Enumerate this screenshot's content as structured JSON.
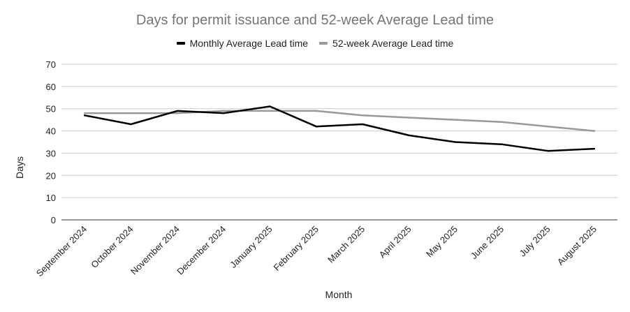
{
  "chart_data": {
    "type": "line",
    "title": "Days for permit issuance and 52-week Average Lead time",
    "xlabel": "Month",
    "ylabel": "Days",
    "ylim": [
      0,
      70
    ],
    "yticks": [
      0,
      10,
      20,
      30,
      40,
      50,
      60,
      70
    ],
    "grid": true,
    "legend_position": "top",
    "categories": [
      "September 2024",
      "October 2024",
      "November 2024",
      "December 2024",
      "January 2025",
      "February 2025",
      "March 2025",
      "April 2025",
      "May 2025",
      "June 2025",
      "July 2025",
      "August 2025"
    ],
    "series": [
      {
        "name": "Monthly Average Lead time",
        "color": "#000000",
        "values": [
          47,
          43,
          49,
          48,
          51,
          42,
          43,
          38,
          35,
          34,
          31,
          32
        ]
      },
      {
        "name": "52-week Average Lead time",
        "color": "#999999",
        "values": [
          48,
          48,
          48,
          49,
          49,
          49,
          47,
          46,
          45,
          44,
          42,
          40
        ]
      }
    ]
  }
}
